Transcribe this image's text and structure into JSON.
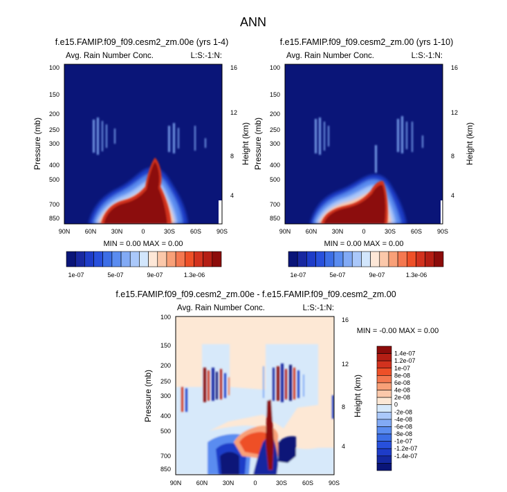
{
  "page": {
    "title": "ANN"
  },
  "colors": {
    "scale": [
      "#0a1578",
      "#1828a0",
      "#1e3cc8",
      "#2850dc",
      "#3c6ee6",
      "#5a8cf0",
      "#82aaf5",
      "#aac8fa",
      "#d2e6fc",
      "#fde7d7",
      "#fbc8aa",
      "#f8a078",
      "#f47850",
      "#ee5028",
      "#d2321e",
      "#b41e14",
      "#8c0c0a"
    ],
    "diff": [
      "#0a1578",
      "#1428a0",
      "#1e3cc8",
      "#2850dc",
      "#3c6ee6",
      "#5a8cf0",
      "#82aaf5",
      "#aac8fa",
      "#d7e9fa",
      "#fde8d5",
      "#fbc8aa",
      "#f8a078",
      "#f47850",
      "#ee5028",
      "#d2321e",
      "#b41e14",
      "#8c0c0a"
    ]
  },
  "chart_data": [
    {
      "type": "heatmap",
      "title": "f.e15.FAMIP.f09_f09.cesm2_zm.00e (yrs 1-4)",
      "left_label": "Avg. Rain Number Conc.",
      "right_label": "L:S:-1:N:",
      "ylabel": "Pressure (mb)",
      "ylabel_right": "Height (km)",
      "x_ticks": [
        "90N",
        "60N",
        "30N",
        "0",
        "30S",
        "60S",
        "90S"
      ],
      "y_ticks": [
        "100",
        "150",
        "200",
        "250",
        "300",
        "400",
        "500",
        "700",
        "850"
      ],
      "y_ticks_right": [
        "16",
        "12",
        "8",
        "4"
      ],
      "stats": "MIN =  0.00   MAX =  0.00",
      "colorbar_labels": [
        "1e-07",
        "5e-07",
        "9e-07",
        "1.3e-06"
      ]
    },
    {
      "type": "heatmap",
      "title": "f.e15.FAMIP.f09_f09.cesm2_zm.00 (yrs 1-10)",
      "left_label": "Avg. Rain Number Conc.",
      "right_label": "L:S:-1:N:",
      "ylabel": "Pressure (mb)",
      "ylabel_right": "Height (km)",
      "x_ticks": [
        "90N",
        "60N",
        "30N",
        "0",
        "30S",
        "60S",
        "90S"
      ],
      "y_ticks": [
        "100",
        "150",
        "200",
        "250",
        "300",
        "400",
        "500",
        "700",
        "850"
      ],
      "y_ticks_right": [
        "16",
        "12",
        "8",
        "4"
      ],
      "stats": "MIN =  0.00   MAX =  0.00",
      "colorbar_labels": [
        "1e-07",
        "5e-07",
        "9e-07",
        "1.3e-06"
      ]
    },
    {
      "type": "heatmap",
      "title": "f.e15.FAMIP.f09_f09.cesm2_zm.00e - f.e15.FAMIP.f09_f09.cesm2_zm.00",
      "left_label": "Avg. Rain Number Conc.",
      "right_label": "L:S:-1:N:",
      "ylabel": "Pressure (mb)",
      "ylabel_right": "Height (km)",
      "x_ticks": [
        "90N",
        "60N",
        "30N",
        "0",
        "30S",
        "60S",
        "90S"
      ],
      "y_ticks": [
        "100",
        "150",
        "200",
        "250",
        "300",
        "400",
        "500",
        "700",
        "850"
      ],
      "y_ticks_right": [
        "16",
        "12",
        "8",
        "4"
      ],
      "stats": "MIN =  -0.00   MAX =  0.00",
      "colorbar_labels": [
        "1.4e-07",
        "1.2e-07",
        "1e-07",
        "8e-08",
        "6e-08",
        "4e-08",
        "2e-08",
        "0",
        "-2e-08",
        "-4e-08",
        "-6e-08",
        "-8e-08",
        "-1e-07",
        "-1.2e-07",
        "-1.4e-07"
      ]
    }
  ]
}
